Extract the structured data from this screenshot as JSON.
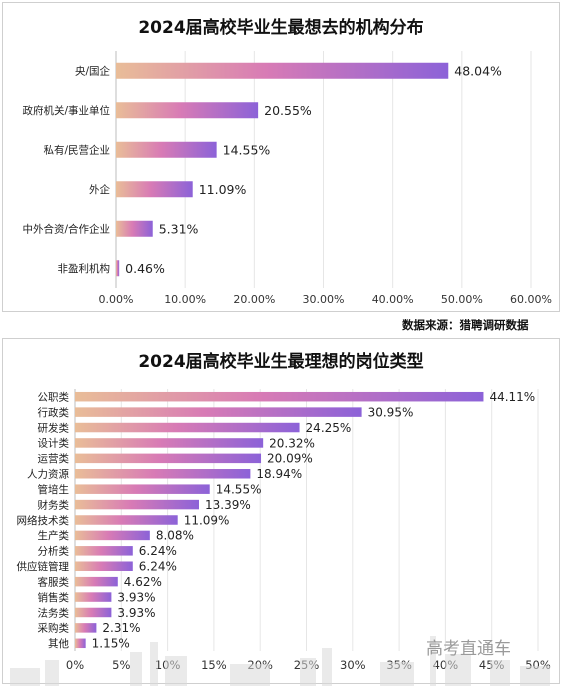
{
  "source_note": "数据来源：猎聘调研数据",
  "watermark": "高考直通车",
  "colors": {
    "bar_start": "#e9bd98",
    "bar_mid": "#d87bb5",
    "bar_end": "#8c62d8",
    "grid": "#e6e6e6"
  },
  "chart_data": [
    {
      "type": "bar",
      "orientation": "horizontal",
      "title": "2024届高校毕业生最想去的机构分布",
      "categories": [
        "央/国企",
        "政府机关/事业单位",
        "私有/民营企业",
        "外企",
        "中外合资/合作企业",
        "非盈利机构"
      ],
      "values": [
        48.04,
        20.55,
        14.55,
        11.09,
        5.31,
        0.46
      ],
      "value_labels": [
        "48.04%",
        "20.55%",
        "14.55%",
        "11.09%",
        "5.31%",
        "0.46%"
      ],
      "xlim": [
        0,
        60
      ],
      "ticks": [
        0,
        10,
        20,
        30,
        40,
        50,
        60
      ],
      "tick_labels": [
        "0.00%",
        "10.00%",
        "20.00%",
        "30.00%",
        "40.00%",
        "50.00%",
        "60.00%"
      ],
      "grid": true
    },
    {
      "type": "bar",
      "orientation": "horizontal",
      "title": "2024届高校毕业生最理想的岗位类型",
      "categories": [
        "公职类",
        "行政类",
        "研发类",
        "设计类",
        "运营类",
        "人力资源",
        "管培生",
        "财务类",
        "网络技术类",
        "生产类",
        "分析类",
        "供应链管理",
        "客服类",
        "销售类",
        "法务类",
        "采购类",
        "其他"
      ],
      "values": [
        44.11,
        30.95,
        24.25,
        20.32,
        20.09,
        18.94,
        14.55,
        13.39,
        11.09,
        8.08,
        6.24,
        6.24,
        4.62,
        3.93,
        3.93,
        2.31,
        1.15
      ],
      "value_labels": [
        "44.11%",
        "30.95%",
        "24.25%",
        "20.32%",
        "20.09%",
        "18.94%",
        "14.55%",
        "13.39%",
        "11.09%",
        "8.08%",
        "6.24%",
        "6.24%",
        "4.62%",
        "3.93%",
        "3.93%",
        "2.31%",
        "1.15%"
      ],
      "xlim": [
        0,
        50
      ],
      "ticks": [
        0,
        5,
        10,
        15,
        20,
        25,
        30,
        35,
        40,
        45,
        50
      ],
      "tick_labels": [
        "0%",
        "5%",
        "10%",
        "15%",
        "20%",
        "25%",
        "30%",
        "35%",
        "40%",
        "45%",
        "50%"
      ],
      "grid": true
    }
  ]
}
